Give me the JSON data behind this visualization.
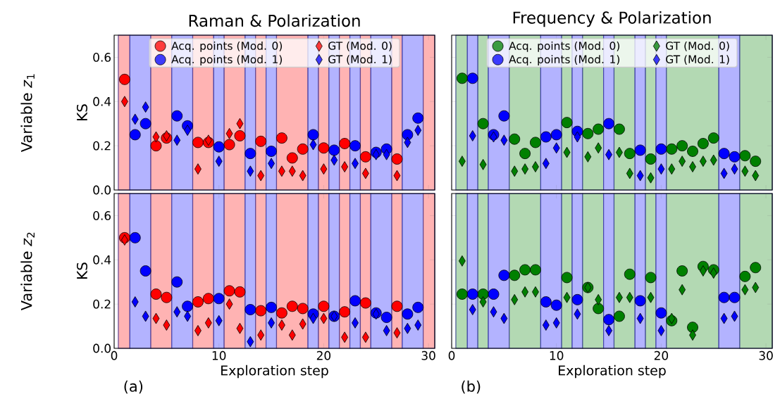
{
  "chart_data": [
    {
      "type": "scatter",
      "title": "Raman & Polarization",
      "ylabel": "KS",
      "annotations": [
        "Variable *z*$_{1}$"
      ],
      "xlim": [
        0,
        30.6
      ],
      "ylim": [
        0,
        0.7
      ],
      "xticks": [
        {
          "value": 0,
          "label": null
        },
        {
          "value": 10,
          "label": null
        },
        {
          "value": 20,
          "label": null
        },
        {
          "value": 30,
          "label": null
        }
      ],
      "yticks": [
        {
          "value": 0,
          "label": "0.0"
        },
        {
          "value": 0.2,
          "label": "0.2"
        },
        {
          "value": 0.4,
          "label": "0.4"
        },
        {
          "value": 0.6,
          "label": "0.6"
        }
      ],
      "tick_labels": "y",
      "legend": "top",
      "bands": [
        {
          "axis": "x",
          "from": 0.4,
          "to": 1.5,
          "color": "#ffb3b3"
        },
        {
          "axis": "x",
          "from": 1.5,
          "to": 3.5,
          "color": "#b3b3ff"
        },
        {
          "axis": "x",
          "from": 3.5,
          "to": 5.5,
          "color": "#ffb3b3"
        },
        {
          "axis": "x",
          "from": 5.5,
          "to": 7.5,
          "color": "#b3b3ff"
        },
        {
          "axis": "x",
          "from": 7.5,
          "to": 9.5,
          "color": "#ffb3b3"
        },
        {
          "axis": "x",
          "from": 9.5,
          "to": 10.5,
          "color": "#b3b3ff"
        },
        {
          "axis": "x",
          "from": 10.5,
          "to": 12.5,
          "color": "#ffb3b3"
        },
        {
          "axis": "x",
          "from": 12.5,
          "to": 13.5,
          "color": "#b3b3ff"
        },
        {
          "axis": "x",
          "from": 13.5,
          "to": 14.5,
          "color": "#ffb3b3"
        },
        {
          "axis": "x",
          "from": 14.5,
          "to": 15.5,
          "color": "#b3b3ff"
        },
        {
          "axis": "x",
          "from": 15.5,
          "to": 18.5,
          "color": "#ffb3b3"
        },
        {
          "axis": "x",
          "from": 18.5,
          "to": 19.5,
          "color": "#b3b3ff"
        },
        {
          "axis": "x",
          "from": 19.5,
          "to": 20.5,
          "color": "#ffb3b3"
        },
        {
          "axis": "x",
          "from": 20.5,
          "to": 21.5,
          "color": "#b3b3ff"
        },
        {
          "axis": "x",
          "from": 21.5,
          "to": 22.5,
          "color": "#ffb3b3"
        },
        {
          "axis": "x",
          "from": 22.5,
          "to": 23.5,
          "color": "#b3b3ff"
        },
        {
          "axis": "x",
          "from": 23.5,
          "to": 24.5,
          "color": "#ffb3b3"
        },
        {
          "axis": "x",
          "from": 24.5,
          "to": 26.5,
          "color": "#b3b3ff"
        },
        {
          "axis": "x",
          "from": 26.5,
          "to": 27.5,
          "color": "#ffb3b3"
        },
        {
          "axis": "x",
          "from": 27.5,
          "to": 29.5,
          "color": "#b3b3ff"
        },
        {
          "axis": "x",
          "from": 29.5,
          "to": 30.6,
          "color": "#ffb3b3"
        }
      ],
      "series": [
        {
          "name": "Acq. points (Mod. 0)",
          "color": "#ff0000",
          "marker": "circle",
          "x": [
            1,
            4,
            5,
            8,
            9,
            11,
            12,
            14,
            16,
            17,
            18,
            20,
            22,
            24,
            27
          ],
          "values": [
            0.5,
            0.2,
            0.235,
            0.215,
            0.215,
            0.205,
            0.245,
            0.22,
            0.235,
            0.145,
            0.185,
            0.19,
            0.21,
            0.15,
            0.14
          ]
        },
        {
          "name": "GT (Mod. 0)",
          "color": "#ff0000",
          "marker": "diamond",
          "x": [
            1,
            4,
            5,
            8,
            9,
            11,
            12,
            14,
            16,
            17,
            18,
            20,
            22,
            24,
            27
          ],
          "values": [
            0.4,
            0.24,
            0.245,
            0.095,
            0.225,
            0.255,
            0.3,
            0.065,
            0.085,
            0.085,
            0.065,
            0.095,
            0.105,
            0.075,
            0.065
          ]
        },
        {
          "name": "Acq. points (Mod. 1)",
          "color": "#0000ff",
          "marker": "circle",
          "x": [
            2,
            3,
            6,
            7,
            10,
            13,
            15,
            19,
            21,
            23,
            25,
            26,
            28,
            29
          ],
          "values": [
            0.25,
            0.3,
            0.335,
            0.29,
            0.195,
            0.165,
            0.175,
            0.25,
            0.18,
            0.2,
            0.17,
            0.185,
            0.25,
            0.325
          ]
        },
        {
          "name": "GT (Mod. 1)",
          "color": "#0000ff",
          "marker": "diamond",
          "x": [
            2,
            3,
            6,
            7,
            10,
            13,
            15,
            19,
            21,
            23,
            25,
            26,
            28,
            29
          ],
          "values": [
            0.32,
            0.375,
            0.225,
            0.27,
            0.13,
            0.085,
            0.12,
            0.205,
            0.135,
            0.12,
            0.16,
            0.16,
            0.215,
            0.27
          ]
        }
      ]
    },
    {
      "type": "scatter",
      "title": "Frequency & Polarization",
      "xlim": [
        0,
        30.6
      ],
      "ylim": [
        0,
        0.7
      ],
      "xticks": [
        {
          "value": 0,
          "label": null
        },
        {
          "value": 10,
          "label": null
        },
        {
          "value": 20,
          "label": null
        },
        {
          "value": 30,
          "label": null
        }
      ],
      "yticks": [
        {
          "value": 0,
          "label": null
        },
        {
          "value": 0.2,
          "label": null
        },
        {
          "value": 0.4,
          "label": null
        },
        {
          "value": 0.6,
          "label": null
        }
      ],
      "tick_labels": false,
      "legend": "top",
      "bands": [
        {
          "axis": "x",
          "from": 0.4,
          "to": 1.5,
          "color": "#b3d9b3"
        },
        {
          "axis": "x",
          "from": 1.5,
          "to": 2.5,
          "color": "#b3b3ff"
        },
        {
          "axis": "x",
          "from": 2.5,
          "to": 3.5,
          "color": "#b3d9b3"
        },
        {
          "axis": "x",
          "from": 3.5,
          "to": 5.5,
          "color": "#b3b3ff"
        },
        {
          "axis": "x",
          "from": 5.5,
          "to": 8.5,
          "color": "#b3d9b3"
        },
        {
          "axis": "x",
          "from": 8.5,
          "to": 10.5,
          "color": "#b3b3ff"
        },
        {
          "axis": "x",
          "from": 10.5,
          "to": 11.5,
          "color": "#b3d9b3"
        },
        {
          "axis": "x",
          "from": 11.5,
          "to": 12.5,
          "color": "#b3b3ff"
        },
        {
          "axis": "x",
          "from": 12.5,
          "to": 14.5,
          "color": "#b3d9b3"
        },
        {
          "axis": "x",
          "from": 14.5,
          "to": 15.5,
          "color": "#b3b3ff"
        },
        {
          "axis": "x",
          "from": 15.5,
          "to": 17.5,
          "color": "#b3d9b3"
        },
        {
          "axis": "x",
          "from": 17.5,
          "to": 18.5,
          "color": "#b3b3ff"
        },
        {
          "axis": "x",
          "from": 18.5,
          "to": 19.5,
          "color": "#b3d9b3"
        },
        {
          "axis": "x",
          "from": 19.5,
          "to": 20.5,
          "color": "#b3b3ff"
        },
        {
          "axis": "x",
          "from": 20.5,
          "to": 25.5,
          "color": "#b3d9b3"
        },
        {
          "axis": "x",
          "from": 25.5,
          "to": 27.5,
          "color": "#b3b3ff"
        },
        {
          "axis": "x",
          "from": 27.5,
          "to": 30.6,
          "color": "#b3d9b3"
        }
      ],
      "series": [
        {
          "name": "Acq. points (Mod. 0)",
          "color": "#008000",
          "marker": "circle",
          "x": [
            1,
            3,
            6,
            7,
            8,
            11,
            13,
            14,
            16,
            17,
            19,
            21,
            22,
            23,
            24,
            25,
            28,
            29
          ],
          "values": [
            0.505,
            0.3,
            0.23,
            0.165,
            0.215,
            0.305,
            0.255,
            0.275,
            0.275,
            0.165,
            0.14,
            0.185,
            0.2,
            0.175,
            0.21,
            0.235,
            0.155,
            0.13
          ]
        },
        {
          "name": "GT (Mod. 0)",
          "color": "#008000",
          "marker": "diamond",
          "x": [
            1,
            3,
            6,
            7,
            8,
            11,
            13,
            14,
            16,
            17,
            19,
            21,
            22,
            23,
            24,
            25,
            28,
            29
          ],
          "values": [
            0.13,
            0.115,
            0.085,
            0.095,
            0.105,
            0.17,
            0.15,
            0.19,
            0.17,
            0.075,
            0.055,
            0.095,
            0.13,
            0.105,
            0.13,
            0.135,
            0.085,
            0.065
          ]
        },
        {
          "name": "Acq. points (Mod. 1)",
          "color": "#0000ff",
          "marker": "circle",
          "x": [
            2,
            4,
            5,
            9,
            10,
            12,
            15,
            18,
            20,
            26,
            27
          ],
          "values": [
            0.505,
            0.25,
            0.335,
            0.24,
            0.25,
            0.265,
            0.3,
            0.18,
            0.185,
            0.165,
            0.15
          ]
        },
        {
          "name": "GT (Mod. 1)",
          "color": "#0000ff",
          "marker": "diamond",
          "x": [
            2,
            4,
            5,
            9,
            10,
            12,
            15,
            18,
            20,
            26,
            27
          ],
          "values": [
            0.245,
            0.24,
            0.225,
            0.12,
            0.19,
            0.24,
            0.16,
            0.065,
            0.095,
            0.075,
            0.095
          ]
        }
      ]
    },
    {
      "type": "scatter",
      "ylabel": "KS",
      "xlabel": "Exploration step",
      "annotations": [
        "Variable *z*$_{2}$",
        "(a)"
      ],
      "xlim": [
        0,
        30.6
      ],
      "ylim": [
        0,
        0.7
      ],
      "xticks": [
        0,
        10,
        20,
        30
      ],
      "yticks": [
        {
          "value": 0,
          "label": "0.0"
        },
        {
          "value": 0.2,
          "label": "0.2"
        },
        {
          "value": 0.4,
          "label": "0.4"
        },
        {
          "value": 0.6,
          "label": "0.6"
        }
      ],
      "bands": [
        {
          "axis": "x",
          "from": 0.4,
          "to": 1.5,
          "color": "#ffb3b3"
        },
        {
          "axis": "x",
          "from": 1.5,
          "to": 3.5,
          "color": "#b3b3ff"
        },
        {
          "axis": "x",
          "from": 3.5,
          "to": 5.5,
          "color": "#ffb3b3"
        },
        {
          "axis": "x",
          "from": 5.5,
          "to": 7.5,
          "color": "#b3b3ff"
        },
        {
          "axis": "x",
          "from": 7.5,
          "to": 9.5,
          "color": "#ffb3b3"
        },
        {
          "axis": "x",
          "from": 9.5,
          "to": 10.5,
          "color": "#b3b3ff"
        },
        {
          "axis": "x",
          "from": 10.5,
          "to": 12.5,
          "color": "#ffb3b3"
        },
        {
          "axis": "x",
          "from": 12.5,
          "to": 13.5,
          "color": "#b3b3ff"
        },
        {
          "axis": "x",
          "from": 13.5,
          "to": 14.5,
          "color": "#ffb3b3"
        },
        {
          "axis": "x",
          "from": 14.5,
          "to": 15.5,
          "color": "#b3b3ff"
        },
        {
          "axis": "x",
          "from": 15.5,
          "to": 18.5,
          "color": "#ffb3b3"
        },
        {
          "axis": "x",
          "from": 18.5,
          "to": 19.5,
          "color": "#b3b3ff"
        },
        {
          "axis": "x",
          "from": 19.5,
          "to": 20.5,
          "color": "#ffb3b3"
        },
        {
          "axis": "x",
          "from": 20.5,
          "to": 21.5,
          "color": "#b3b3ff"
        },
        {
          "axis": "x",
          "from": 21.5,
          "to": 22.5,
          "color": "#ffb3b3"
        },
        {
          "axis": "x",
          "from": 22.5,
          "to": 23.5,
          "color": "#b3b3ff"
        },
        {
          "axis": "x",
          "from": 23.5,
          "to": 24.5,
          "color": "#ffb3b3"
        },
        {
          "axis": "x",
          "from": 24.5,
          "to": 26.5,
          "color": "#b3b3ff"
        },
        {
          "axis": "x",
          "from": 26.5,
          "to": 27.5,
          "color": "#ffb3b3"
        },
        {
          "axis": "x",
          "from": 27.5,
          "to": 29.5,
          "color": "#b3b3ff"
        },
        {
          "axis": "x",
          "from": 29.5,
          "to": 30.6,
          "color": "#ffb3b3"
        }
      ],
      "series": [
        {
          "color": "#ff0000",
          "marker": "circle",
          "x": [
            1,
            4,
            5,
            8,
            9,
            11,
            12,
            14,
            16,
            17,
            18,
            20,
            22,
            24,
            27
          ],
          "values": [
            0.5,
            0.245,
            0.23,
            0.21,
            0.225,
            0.26,
            0.255,
            0.17,
            0.16,
            0.19,
            0.18,
            0.19,
            0.165,
            0.205,
            0.19
          ]
        },
        {
          "color": "#ff0000",
          "marker": "diamond",
          "x": [
            1,
            4,
            5,
            8,
            9,
            11,
            12,
            14,
            16,
            17,
            18,
            20,
            22,
            24,
            27
          ],
          "values": [
            0.49,
            0.135,
            0.105,
            0.08,
            0.115,
            0.2,
            0.09,
            0.06,
            0.105,
            0.06,
            0.11,
            0.135,
            0.05,
            0.05,
            0.07
          ]
        },
        {
          "color": "#0000ff",
          "marker": "circle",
          "x": [
            2,
            3,
            6,
            7,
            10,
            13,
            15,
            19,
            21,
            23,
            25,
            26,
            28,
            29
          ],
          "values": [
            0.5,
            0.35,
            0.3,
            0.19,
            0.225,
            0.175,
            0.185,
            0.155,
            0.145,
            0.215,
            0.16,
            0.14,
            0.155,
            0.185
          ]
        },
        {
          "color": "#0000ff",
          "marker": "diamond",
          "x": [
            2,
            3,
            6,
            7,
            10,
            13,
            15,
            19,
            21,
            23,
            25,
            26,
            28,
            29
          ],
          "values": [
            0.21,
            0.145,
            0.165,
            0.145,
            0.125,
            0.03,
            0.115,
            0.135,
            0.145,
            0.115,
            0.155,
            0.08,
            0.09,
            0.105
          ]
        }
      ]
    },
    {
      "type": "scatter",
      "xlabel": "Exploration step",
      "annotations": [
        "(b)"
      ],
      "xlim": [
        0,
        30.6
      ],
      "ylim": [
        0,
        0.7
      ],
      "xticks": [
        0,
        10,
        20,
        30
      ],
      "yticks": [
        {
          "value": 0,
          "label": null
        },
        {
          "value": 0.2,
          "label": null
        },
        {
          "value": 0.4,
          "label": null
        },
        {
          "value": 0.6,
          "label": null
        }
      ],
      "tick_labels": "x",
      "bands": [
        {
          "axis": "x",
          "from": 0.4,
          "to": 1.5,
          "color": "#b3d9b3"
        },
        {
          "axis": "x",
          "from": 1.5,
          "to": 2.5,
          "color": "#b3b3ff"
        },
        {
          "axis": "x",
          "from": 2.5,
          "to": 3.5,
          "color": "#b3d9b3"
        },
        {
          "axis": "x",
          "from": 3.5,
          "to": 5.5,
          "color": "#b3b3ff"
        },
        {
          "axis": "x",
          "from": 5.5,
          "to": 8.5,
          "color": "#b3d9b3"
        },
        {
          "axis": "x",
          "from": 8.5,
          "to": 10.5,
          "color": "#b3b3ff"
        },
        {
          "axis": "x",
          "from": 10.5,
          "to": 11.5,
          "color": "#b3d9b3"
        },
        {
          "axis": "x",
          "from": 11.5,
          "to": 12.5,
          "color": "#b3b3ff"
        },
        {
          "axis": "x",
          "from": 12.5,
          "to": 14.5,
          "color": "#b3d9b3"
        },
        {
          "axis": "x",
          "from": 14.5,
          "to": 15.5,
          "color": "#b3b3ff"
        },
        {
          "axis": "x",
          "from": 15.5,
          "to": 17.5,
          "color": "#b3d9b3"
        },
        {
          "axis": "x",
          "from": 17.5,
          "to": 18.5,
          "color": "#b3b3ff"
        },
        {
          "axis": "x",
          "from": 18.5,
          "to": 19.5,
          "color": "#b3d9b3"
        },
        {
          "axis": "x",
          "from": 19.5,
          "to": 20.5,
          "color": "#b3b3ff"
        },
        {
          "axis": "x",
          "from": 20.5,
          "to": 25.5,
          "color": "#b3d9b3"
        },
        {
          "axis": "x",
          "from": 25.5,
          "to": 27.5,
          "color": "#b3b3ff"
        },
        {
          "axis": "x",
          "from": 27.5,
          "to": 30.6,
          "color": "#b3d9b3"
        }
      ],
      "series": [
        {
          "color": "#008000",
          "marker": "circle",
          "x": [
            1,
            3,
            6,
            7,
            8,
            11,
            13,
            14,
            16,
            17,
            19,
            21,
            22,
            23,
            24,
            25,
            28,
            29
          ],
          "values": [
            0.245,
            0.245,
            0.33,
            0.355,
            0.355,
            0.32,
            0.275,
            0.18,
            0.145,
            0.335,
            0.32,
            0.125,
            0.35,
            0.095,
            0.37,
            0.355,
            0.325,
            0.365
          ]
        },
        {
          "color": "#008000",
          "marker": "diamond",
          "x": [
            1,
            3,
            6,
            7,
            8,
            11,
            13,
            14,
            16,
            17,
            19,
            21,
            22,
            23,
            24,
            25,
            28,
            29
          ],
          "values": [
            0.395,
            0.21,
            0.22,
            0.255,
            0.255,
            0.23,
            0.275,
            0.22,
            0.23,
            0.23,
            0.23,
            0.135,
            0.265,
            0.06,
            0.35,
            0.34,
            0.265,
            0.275
          ]
        },
        {
          "color": "#0000ff",
          "marker": "circle",
          "x": [
            2,
            4,
            5,
            9,
            10,
            12,
            15,
            18,
            20,
            26,
            27
          ],
          "values": [
            0.245,
            0.245,
            0.33,
            0.21,
            0.195,
            0.22,
            0.13,
            0.215,
            0.16,
            0.23,
            0.23
          ]
        },
        {
          "color": "#0000ff",
          "marker": "diamond",
          "x": [
            2,
            4,
            5,
            9,
            10,
            12,
            15,
            18,
            20,
            26,
            27
          ],
          "values": [
            0.175,
            0.165,
            0.135,
            0.105,
            0.115,
            0.155,
            0.08,
            0.135,
            0.08,
            0.135,
            0.145
          ]
        }
      ]
    }
  ]
}
